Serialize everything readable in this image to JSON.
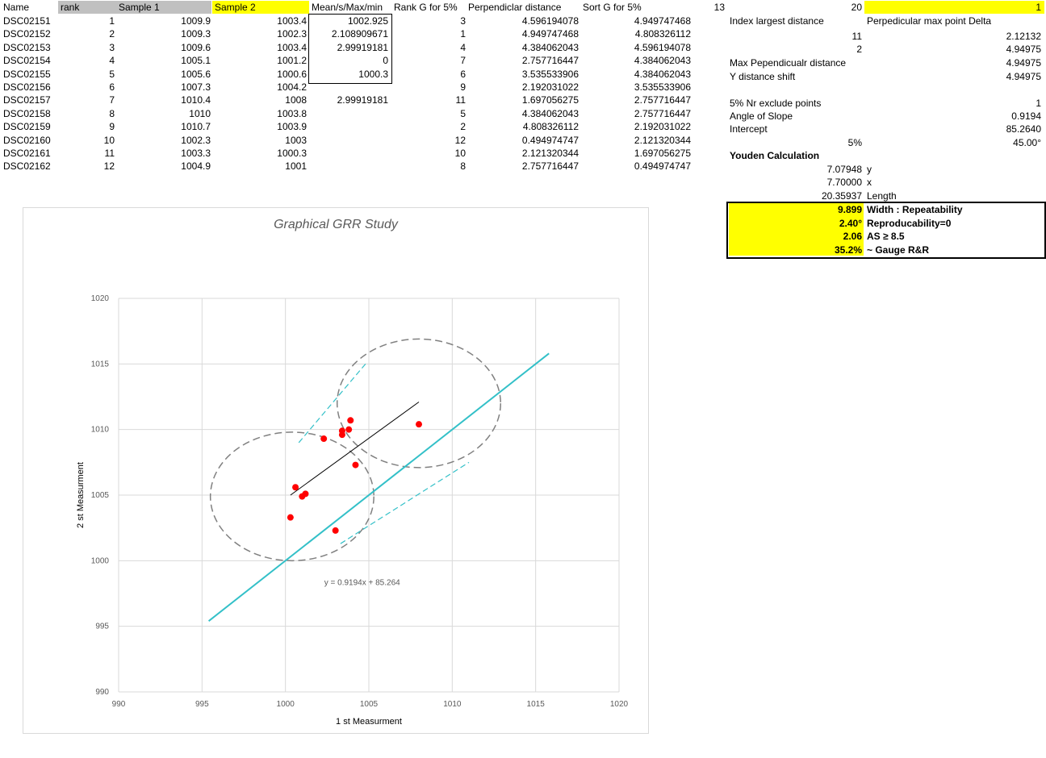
{
  "headers": {
    "name": "Name",
    "rank": "rank",
    "sample1": "Sample 1",
    "sample2": "Sample 2",
    "mean": "Mean/s/Max/min",
    "rankg": "Rank G for 5%",
    "perp": "Perpendiclar distance",
    "sortg": "Sort G for 5%",
    "val13": "13",
    "val20": "20",
    "val1": "1"
  },
  "rows": [
    {
      "name": "DSC02151",
      "rank": "1",
      "s1": "1009.9",
      "s2": "1003.4",
      "mean": "1002.925",
      "rankg": "3",
      "perp": "4.596194078",
      "sortg": "4.949747468"
    },
    {
      "name": "DSC02152",
      "rank": "2",
      "s1": "1009.3",
      "s2": "1002.3",
      "mean": "2.108909671",
      "rankg": "1",
      "perp": "4.949747468",
      "sortg": "4.808326112"
    },
    {
      "name": "DSC02153",
      "rank": "3",
      "s1": "1009.6",
      "s2": "1003.4",
      "mean": "2.99919181",
      "rankg": "4",
      "perp": "4.384062043",
      "sortg": "4.596194078"
    },
    {
      "name": "DSC02154",
      "rank": "4",
      "s1": "1005.1",
      "s2": "1001.2",
      "mean": "0",
      "rankg": "7",
      "perp": "2.757716447",
      "sortg": "4.384062043"
    },
    {
      "name": "DSC02155",
      "rank": "5",
      "s1": "1005.6",
      "s2": "1000.6",
      "mean": "1000.3",
      "rankg": "6",
      "perp": "3.535533906",
      "sortg": "4.384062043"
    },
    {
      "name": "DSC02156",
      "rank": "6",
      "s1": "1007.3",
      "s2": "1004.2",
      "mean": "",
      "rankg": "9",
      "perp": "2.192031022",
      "sortg": "3.535533906"
    },
    {
      "name": "DSC02157",
      "rank": "7",
      "s1": "1010.4",
      "s2": "1008",
      "mean": "2.99919181",
      "rankg": "11",
      "perp": "1.697056275",
      "sortg": "2.757716447"
    },
    {
      "name": "DSC02158",
      "rank": "8",
      "s1": "1010",
      "s2": "1003.8",
      "mean": "",
      "rankg": "5",
      "perp": "4.384062043",
      "sortg": "2.757716447"
    },
    {
      "name": "DSC02159",
      "rank": "9",
      "s1": "1010.7",
      "s2": "1003.9",
      "mean": "",
      "rankg": "2",
      "perp": "4.808326112",
      "sortg": "2.192031022"
    },
    {
      "name": "DSC02160",
      "rank": "10",
      "s1": "1002.3",
      "s2": "1003",
      "mean": "",
      "rankg": "12",
      "perp": "0.494974747",
      "sortg": "2.121320344"
    },
    {
      "name": "DSC02161",
      "rank": "11",
      "s1": "1003.3",
      "s2": "1000.3",
      "mean": "",
      "rankg": "10",
      "perp": "2.121320344",
      "sortg": "1.697056275"
    },
    {
      "name": "DSC02162",
      "rank": "12",
      "s1": "1004.9",
      "s2": "1001",
      "mean": "",
      "rankg": "8",
      "perp": "2.757716447",
      "sortg": "0.494974747"
    }
  ],
  "side": {
    "index_largest": "Index largest distance",
    "perp_max": "Perpedicular max point Delta",
    "v11": "11",
    "v2_12132": "2.12132",
    "v2": "2",
    "v4_94975a": "4.94975",
    "max_perp": "Max Pependicualr distance",
    "v4_94975b": "4.94975",
    "ydist": "Y distance shift",
    "v4_94975c": "4.94975",
    "exclude": "5% Nr exclude points",
    "v1": "1",
    "angle": "Angle of Slope",
    "v0_9194": "0.9194",
    "intercept": "Intercept",
    "v85": "85.2640",
    "pct5": "5%",
    "deg45": "45.00°",
    "youden": "Youden Calculation",
    "y_val": "7.07948",
    "y_lbl": "y",
    "x_val": "7.70000",
    "x_lbl": "x",
    "len_val": "20.35937",
    "len_lbl": "Length"
  },
  "summary": [
    {
      "value": "9.899",
      "label": "Width : Repeatability"
    },
    {
      "value": "2.40°",
      "label": "Reproducability=0"
    },
    {
      "value": "2.06",
      "label": "AS ≥  8.5"
    },
    {
      "value": "35.2%",
      "label": "~ Gauge R&R"
    }
  ],
  "chart_data": {
    "type": "scatter",
    "title": "Graphical GRR Study",
    "xlabel": "1 st Measurment",
    "ylabel": "2 st Measurment",
    "xlim": [
      990,
      1020
    ],
    "ylim": [
      990,
      1020
    ],
    "xticks": [
      "990",
      "995",
      "1000",
      "1005",
      "1010",
      "1015",
      "1020"
    ],
    "yticks": [
      "990",
      "995",
      "1000",
      "1005",
      "1010",
      "1015",
      "1020"
    ],
    "grid": true,
    "points": [
      {
        "x": 1003.4,
        "y": 1009.9
      },
      {
        "x": 1002.3,
        "y": 1009.3
      },
      {
        "x": 1003.4,
        "y": 1009.6
      },
      {
        "x": 1001.2,
        "y": 1005.1
      },
      {
        "x": 1000.6,
        "y": 1005.6
      },
      {
        "x": 1004.2,
        "y": 1007.3
      },
      {
        "x": 1008.0,
        "y": 1010.4
      },
      {
        "x": 1003.8,
        "y": 1010.0
      },
      {
        "x": 1003.9,
        "y": 1010.7
      },
      {
        "x": 1003.0,
        "y": 1002.3
      },
      {
        "x": 1000.3,
        "y": 1003.3
      },
      {
        "x": 1001.0,
        "y": 1004.9
      }
    ],
    "point_color": "#ff0000",
    "trendline": {
      "label": "y = 0.9194x + 85.264",
      "from": [
        1000.3,
        1005.0
      ],
      "to": [
        1008.0,
        1012.1
      ],
      "color": "#000000"
    },
    "reference_line": {
      "from": [
        995.4,
        995.4
      ],
      "to": [
        1015.8,
        1015.8
      ],
      "color": "#33c0c8"
    },
    "parallel_lines": [
      {
        "from": [
          1000.8,
          1009.0
        ],
        "to": [
          1004.8,
          1015.0
        ]
      },
      {
        "from": [
          1003.3,
          1001.3
        ],
        "to": [
          1011.0,
          1007.5
        ]
      }
    ],
    "circles": [
      {
        "cx": 1000.4,
        "cy": 1004.9,
        "r": 4.9
      },
      {
        "cx": 1008.0,
        "cy": 1012.0,
        "r": 4.9
      }
    ]
  }
}
